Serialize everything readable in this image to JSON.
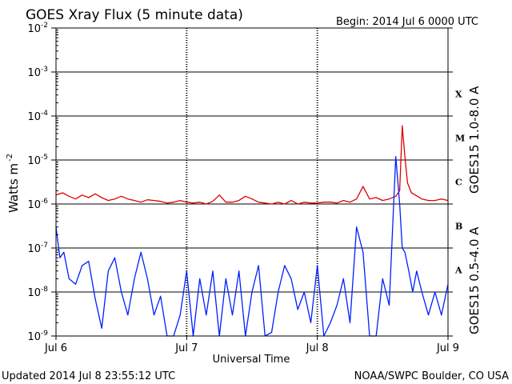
{
  "chart_data": {
    "type": "line",
    "title": "GOES Xray Flux (5 minute data)",
    "begin_label": "Begin:  2014 Jul 6 0000 UTC",
    "xlabel": "Universal Time",
    "ylabel_main": "Watts m",
    "ylabel_sup": "-2",
    "x_ticks": [
      "Jul 6",
      "Jul 7",
      "Jul 8",
      "Jul 9"
    ],
    "x_range_days": [
      0,
      3
    ],
    "y_scale": "log",
    "ylim": [
      1e-09,
      0.01
    ],
    "y_ticks": [
      {
        "exp": "-9",
        "value": 1e-09
      },
      {
        "exp": "-8",
        "value": 1e-08
      },
      {
        "exp": "-7",
        "value": 1e-07
      },
      {
        "exp": "-6",
        "value": 1e-06
      },
      {
        "exp": "-5",
        "value": 1e-05
      },
      {
        "exp": "-4",
        "value": 0.0001
      },
      {
        "exp": "-3",
        "value": 0.001
      },
      {
        "exp": "-2",
        "value": 0.01
      }
    ],
    "y_tick_base": "10",
    "flare_classes": [
      {
        "label": "X",
        "value": 0.000316
      },
      {
        "label": "M",
        "value": 3.16e-05
      },
      {
        "label": "C",
        "value": 3.16e-06
      },
      {
        "label": "B",
        "value": 3.16e-07
      },
      {
        "label": "A",
        "value": 3.16e-08
      }
    ],
    "grid": true,
    "series": [
      {
        "name": "GOES15 1.0-8.0 A",
        "color": "#e00000",
        "x": [
          0,
          0.05,
          0.1,
          0.15,
          0.2,
          0.25,
          0.3,
          0.35,
          0.4,
          0.45,
          0.5,
          0.55,
          0.6,
          0.65,
          0.7,
          0.75,
          0.8,
          0.85,
          0.9,
          0.95,
          1.0,
          1.05,
          1.1,
          1.15,
          1.2,
          1.25,
          1.3,
          1.35,
          1.4,
          1.45,
          1.5,
          1.55,
          1.6,
          1.65,
          1.7,
          1.75,
          1.8,
          1.85,
          1.9,
          1.95,
          2.0,
          2.05,
          2.1,
          2.15,
          2.2,
          2.25,
          2.3,
          2.35,
          2.4,
          2.45,
          2.5,
          2.55,
          2.6,
          2.63,
          2.65,
          2.67,
          2.69,
          2.72,
          2.75,
          2.8,
          2.85,
          2.9,
          2.95,
          3.0
        ],
        "values": [
          1.6e-06,
          1.8e-06,
          1.5e-06,
          1.3e-06,
          1.6e-06,
          1.4e-06,
          1.7e-06,
          1.4e-06,
          1.2e-06,
          1.3e-06,
          1.5e-06,
          1.3e-06,
          1.2e-06,
          1.1e-06,
          1.25e-06,
          1.2e-06,
          1.15e-06,
          1.05e-06,
          1.1e-06,
          1.2e-06,
          1.1e-06,
          1.05e-06,
          1.1e-06,
          1e-06,
          1.15e-06,
          1.6e-06,
          1.1e-06,
          1.1e-06,
          1.2e-06,
          1.5e-06,
          1.3e-06,
          1.1e-06,
          1.05e-06,
          1e-06,
          1.1e-06,
          1e-06,
          1.2e-06,
          1e-06,
          1.1e-06,
          1.05e-06,
          1.05e-06,
          1.1e-06,
          1.1e-06,
          1.05e-06,
          1.2e-06,
          1.1e-06,
          1.3e-06,
          2.5e-06,
          1.3e-06,
          1.4e-06,
          1.2e-06,
          1.3e-06,
          1.5e-06,
          2e-06,
          6e-05,
          1.2e-05,
          3e-06,
          1.8e-06,
          1.6e-06,
          1.3e-06,
          1.2e-06,
          1.2e-06,
          1.3e-06,
          1.2e-06
        ]
      },
      {
        "name": "GOES15 0.5-4.0 A",
        "color": "#0020ff",
        "x": [
          0,
          0.03,
          0.06,
          0.1,
          0.15,
          0.2,
          0.25,
          0.3,
          0.35,
          0.4,
          0.45,
          0.5,
          0.55,
          0.6,
          0.65,
          0.7,
          0.75,
          0.8,
          0.85,
          0.9,
          0.95,
          1.0,
          1.05,
          1.1,
          1.15,
          1.2,
          1.25,
          1.3,
          1.35,
          1.4,
          1.45,
          1.5,
          1.55,
          1.6,
          1.65,
          1.7,
          1.75,
          1.8,
          1.85,
          1.9,
          1.95,
          2.0,
          2.05,
          2.1,
          2.15,
          2.2,
          2.25,
          2.3,
          2.35,
          2.4,
          2.45,
          2.5,
          2.55,
          2.6,
          2.63,
          2.65,
          2.67,
          2.7,
          2.73,
          2.76,
          2.8,
          2.85,
          2.9,
          2.95,
          3.0
        ],
        "values": [
          3e-07,
          6e-08,
          8e-08,
          2e-08,
          1.5e-08,
          4e-08,
          5e-08,
          7e-09,
          1.5e-09,
          3e-08,
          6e-08,
          1e-08,
          3e-09,
          2e-08,
          8e-08,
          2e-08,
          3e-09,
          8e-09,
          1e-09,
          1e-09,
          3e-09,
          3e-08,
          1e-09,
          2e-08,
          3e-09,
          3e-08,
          1e-09,
          2e-08,
          3e-09,
          3e-08,
          1e-09,
          1e-08,
          4e-08,
          1e-09,
          1.2e-09,
          1e-08,
          4e-08,
          2e-08,
          4e-09,
          1e-08,
          2e-09,
          4e-08,
          1e-09,
          2e-09,
          5e-09,
          2e-08,
          2e-09,
          3e-07,
          8e-08,
          1e-09,
          1e-09,
          2e-08,
          5e-09,
          1.2e-05,
          1e-06,
          1e-07,
          8e-08,
          3e-08,
          1e-08,
          3e-08,
          1e-08,
          3e-09,
          1e-08,
          3e-09,
          1.5e-08
        ]
      }
    ]
  },
  "footer": {
    "updated": "Updated 2014 Jul  8 23:55:12 UTC",
    "source": "NOAA/SWPC Boulder, CO USA"
  }
}
